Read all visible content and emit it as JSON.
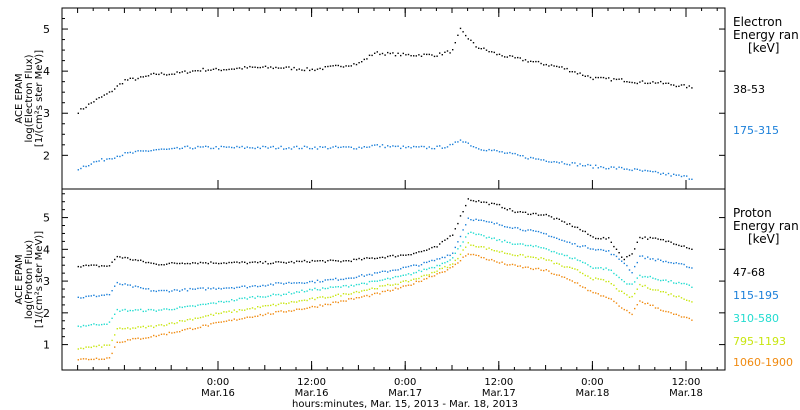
{
  "chart_data": [
    {
      "type": "line",
      "panel": "electron",
      "ylabel": [
        "ACE EPAM",
        "log(Electron Flux)",
        "[1/(cm²s ster MeV)]"
      ],
      "ylim": [
        1.2,
        5.5
      ],
      "yticks": [
        2,
        3,
        4,
        5
      ],
      "ytick_labels": [
        "2",
        "3",
        "4",
        "5"
      ],
      "legend_title": [
        "Electron",
        "Energy ran",
        "[keV]"
      ],
      "x": [
        "03-15 06:00",
        "03-15 08:00",
        "03-15 10:00",
        "03-15 12:00",
        "03-15 14:00",
        "03-15 16:00",
        "03-15 18:00",
        "03-15 20:00",
        "03-15 22:00",
        "03-16 00:00",
        "03-16 04:00",
        "03-16 08:00",
        "03-16 12:00",
        "03-16 16:00",
        "03-16 18:00",
        "03-16 20:00",
        "03-17 00:00",
        "03-17 04:00",
        "03-17 06:00",
        "03-17 07:00",
        "03-17 09:00",
        "03-17 12:00",
        "03-17 16:00",
        "03-17 20:00",
        "03-18 00:00",
        "03-18 04:00",
        "03-18 06:00",
        "03-18 08:00",
        "03-18 10:00",
        "03-18 12:00",
        "03-18 13:00"
      ],
      "series": [
        {
          "name": "38-53",
          "color": "#000000",
          "values": [
            3.05,
            3.3,
            3.5,
            3.8,
            3.85,
            3.95,
            3.95,
            4.0,
            4.05,
            4.05,
            4.1,
            4.1,
            4.05,
            4.15,
            4.2,
            4.45,
            4.4,
            4.4,
            4.5,
            5.0,
            4.6,
            4.4,
            4.25,
            4.1,
            3.85,
            3.8,
            3.75,
            3.75,
            3.7,
            3.65,
            3.6
          ]
        },
        {
          "name": "175-315",
          "color": "#1a7fd9",
          "values": [
            1.7,
            1.85,
            1.95,
            2.05,
            2.1,
            2.15,
            2.15,
            2.2,
            2.2,
            2.2,
            2.2,
            2.2,
            2.2,
            2.2,
            2.2,
            2.25,
            2.2,
            2.2,
            2.25,
            2.4,
            2.2,
            2.1,
            1.95,
            1.85,
            1.75,
            1.7,
            1.65,
            1.6,
            1.55,
            1.5,
            1.45
          ]
        }
      ]
    },
    {
      "type": "line",
      "panel": "proton",
      "ylabel": [
        "ACE EPAM",
        "log(Proton Flux)",
        "[1/(cm²s ster MeV)]"
      ],
      "ylim": [
        0.2,
        5.9
      ],
      "yticks": [
        1,
        2,
        3,
        4,
        5
      ],
      "ytick_labels": [
        "1",
        "2",
        "3",
        "4",
        "5"
      ],
      "legend_title": [
        "Proton",
        "Energy ran",
        "[keV]"
      ],
      "x": [
        "03-15 06:00",
        "03-15 10:00",
        "03-15 11:00",
        "03-15 16:00",
        "03-15 20:00",
        "03-16 00:00",
        "03-16 04:00",
        "03-16 08:00",
        "03-16 12:00",
        "03-16 16:00",
        "03-16 20:00",
        "03-17 00:00",
        "03-17 02:00",
        "03-17 04:00",
        "03-17 06:00",
        "03-17 08:00",
        "03-17 12:00",
        "03-17 14:00",
        "03-17 18:00",
        "03-17 20:00",
        "03-17 22:00",
        "03-18 00:00",
        "03-18 02:00",
        "03-18 04:00",
        "03-18 05:00",
        "03-18 06:00",
        "03-18 08:00",
        "03-18 10:00",
        "03-18 12:00",
        "03-18 13:00"
      ],
      "series": [
        {
          "name": "47-68",
          "color": "#000000",
          "values": [
            3.5,
            3.5,
            3.8,
            3.55,
            3.6,
            3.6,
            3.6,
            3.6,
            3.65,
            3.65,
            3.75,
            3.85,
            3.95,
            4.1,
            4.5,
            5.6,
            5.4,
            5.2,
            5.1,
            4.9,
            4.7,
            4.4,
            4.35,
            3.7,
            3.9,
            4.4,
            4.35,
            4.25,
            4.1,
            4.0
          ]
        },
        {
          "name": "115-195",
          "color": "#1a7fd9",
          "values": [
            2.5,
            2.6,
            2.95,
            2.7,
            2.75,
            2.8,
            2.85,
            2.95,
            3.0,
            3.1,
            3.25,
            3.45,
            3.55,
            3.7,
            3.9,
            5.0,
            4.8,
            4.7,
            4.5,
            4.3,
            4.15,
            4.05,
            3.95,
            3.6,
            3.3,
            3.8,
            3.7,
            3.6,
            3.5,
            3.4
          ]
        },
        {
          "name": "310-580",
          "color": "#22dcd0",
          "values": [
            1.6,
            1.7,
            2.1,
            2.1,
            2.2,
            2.35,
            2.5,
            2.6,
            2.75,
            2.85,
            3.0,
            3.2,
            3.35,
            3.5,
            3.75,
            4.55,
            4.3,
            4.2,
            4.05,
            3.85,
            3.7,
            3.45,
            3.4,
            3.0,
            2.9,
            3.2,
            3.1,
            3.0,
            2.9,
            2.8
          ]
        },
        {
          "name": "795-1193",
          "color": "#c8e610",
          "values": [
            0.9,
            1.0,
            1.5,
            1.6,
            1.8,
            2.0,
            2.15,
            2.3,
            2.45,
            2.6,
            2.8,
            3.0,
            3.15,
            3.35,
            3.55,
            4.2,
            3.95,
            3.85,
            3.7,
            3.5,
            3.35,
            3.1,
            3.0,
            2.6,
            2.5,
            2.9,
            2.75,
            2.6,
            2.45,
            2.35
          ]
        },
        {
          "name": "1060-1900",
          "color": "#f08a10",
          "values": [
            0.55,
            0.6,
            1.1,
            1.3,
            1.5,
            1.7,
            1.9,
            2.05,
            2.2,
            2.4,
            2.6,
            2.85,
            3.05,
            3.25,
            3.45,
            3.9,
            3.6,
            3.5,
            3.35,
            3.15,
            2.95,
            2.65,
            2.5,
            2.1,
            2.0,
            2.4,
            2.2,
            2.0,
            1.85,
            1.75
          ]
        }
      ]
    }
  ],
  "x_axis": {
    "range": [
      "03-15 04:00",
      "03-18 17:00"
    ],
    "ticks": [
      {
        "at": "03-16 00:00",
        "time": "0:00",
        "date": "Mar.16"
      },
      {
        "at": "03-16 12:00",
        "time": "12:00",
        "date": "Mar.16"
      },
      {
        "at": "03-17 00:00",
        "time": "0:00",
        "date": "Mar.17"
      },
      {
        "at": "03-17 12:00",
        "time": "12:00",
        "date": "Mar.17"
      },
      {
        "at": "03-18 00:00",
        "time": "0:00",
        "date": "Mar.18"
      },
      {
        "at": "03-18 12:00",
        "time": "12:00",
        "date": "Mar.18"
      }
    ],
    "xlabel": "hours:minutes, Mar. 15, 2013 - Mar. 18, 2013"
  }
}
